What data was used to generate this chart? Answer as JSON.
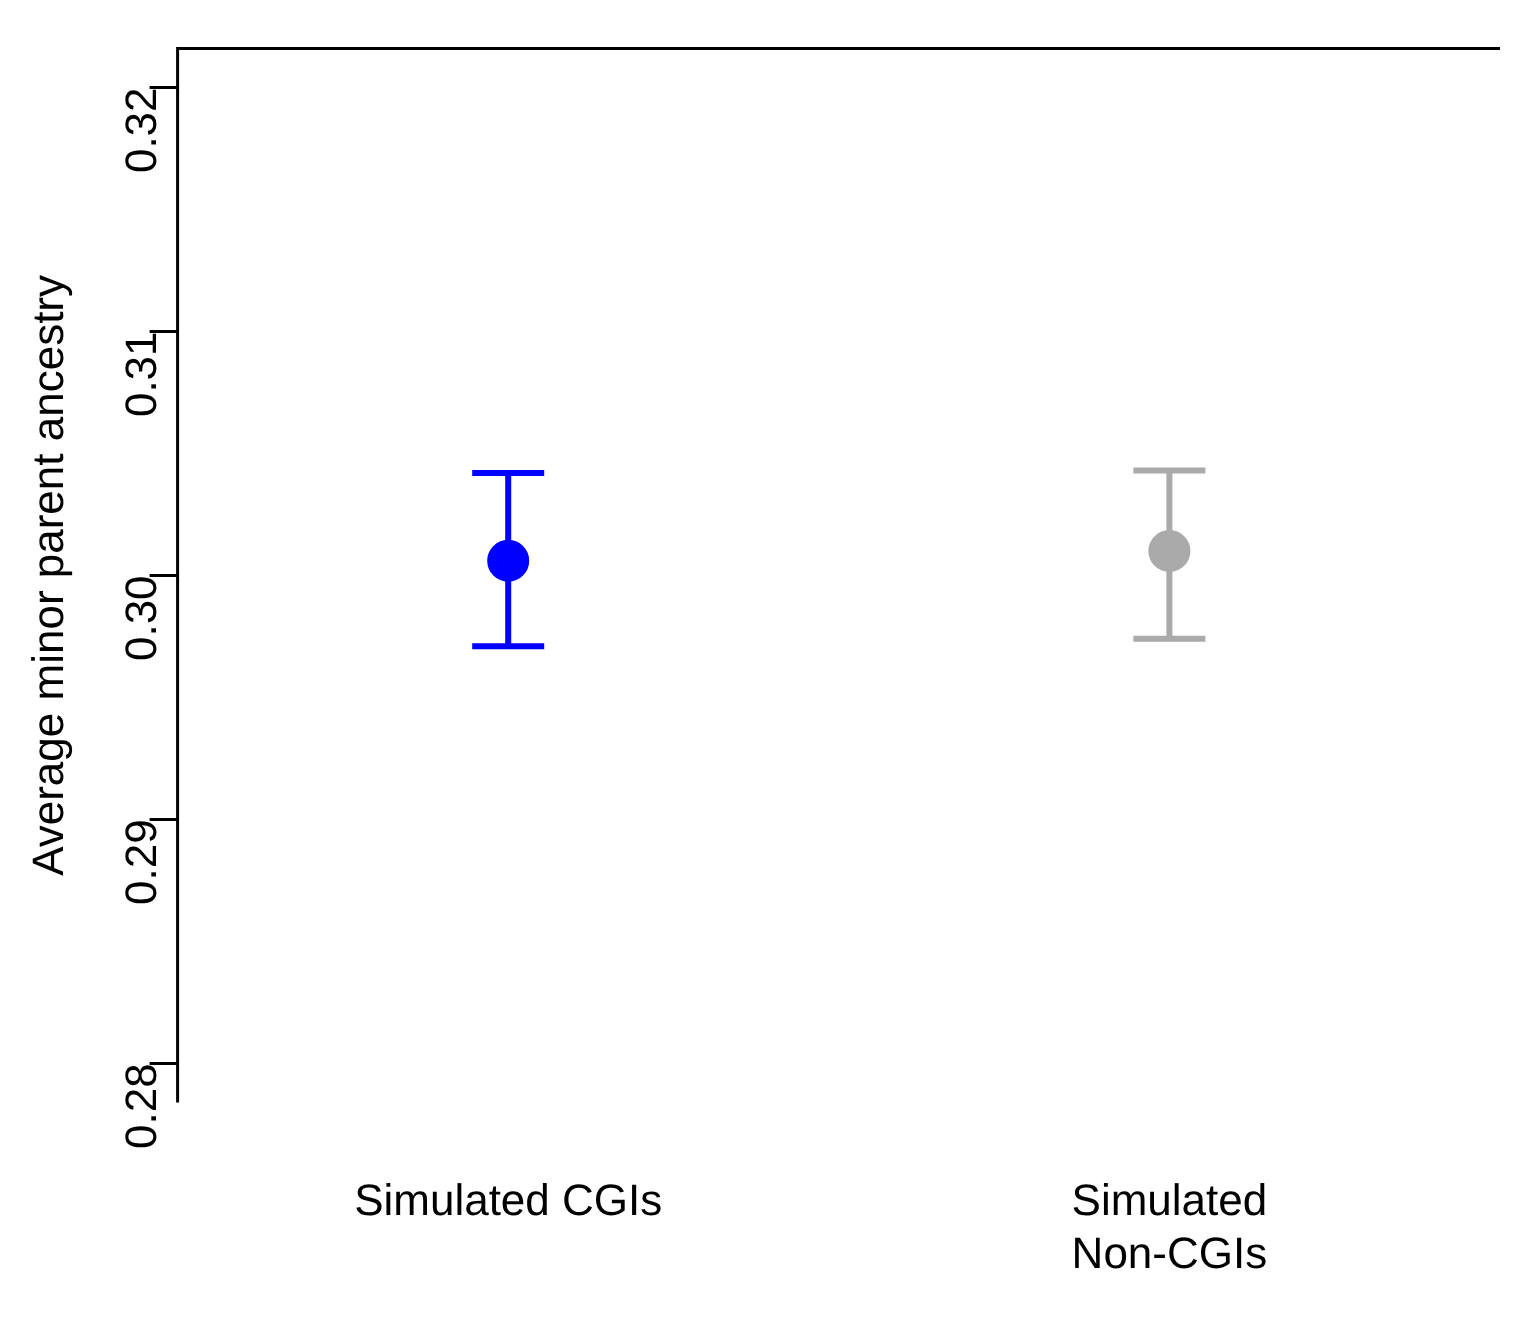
{
  "chart_data": {
    "type": "scatter",
    "ylabel": "Average minor parent ancestry",
    "categories": [
      "Simulated CGIs",
      "Simulated Non-CGIs"
    ],
    "values": [
      0.3006,
      0.301
    ],
    "errors": [
      [
        0.2971,
        0.3042
      ],
      [
        0.2974,
        0.3043
      ]
    ],
    "colors": [
      "#0000ff",
      "#aaaaaa"
    ],
    "ylim": [
      0.2784,
      0.3216
    ],
    "yticks": [
      0.28,
      0.29,
      {
        "value": 0.3,
        "label": "0.30"
      },
      0.31,
      0.32
    ],
    "marker": "circle",
    "grid": false,
    "legend": false
  }
}
